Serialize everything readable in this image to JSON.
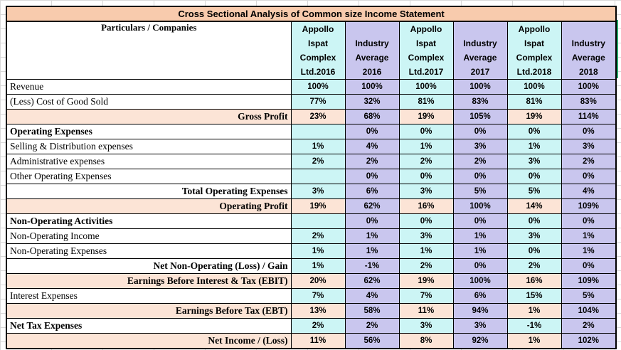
{
  "title": "Cross Sectional Analysis of Common size Income Statement",
  "header": {
    "particulars": "Particulars / Companies",
    "columns": [
      [
        "Appollo",
        "Ispat",
        "Complex",
        "Ltd.2016"
      ],
      [
        "Industry",
        "Average",
        "2016"
      ],
      [
        "Appollo",
        "Ispat",
        "Complex",
        "Ltd.2017"
      ],
      [
        "Industry",
        "Average",
        "2017"
      ],
      [
        "Appollo",
        "Ispat",
        "Complex",
        "Ltd.2018"
      ],
      [
        "Industry",
        "Average",
        "2018"
      ]
    ]
  },
  "rows": [
    {
      "label": "Revenue",
      "style": "plain",
      "values": [
        "100%",
        "100%",
        "100%",
        "100%",
        "100%",
        "100%"
      ]
    },
    {
      "label": "(Less) Cost of Good Sold",
      "style": "plain",
      "values": [
        "77%",
        "32%",
        "81%",
        "83%",
        "81%",
        "83%"
      ]
    },
    {
      "label": "Gross Profit",
      "style": "total",
      "values": [
        "23%",
        "68%",
        "19%",
        "105%",
        "19%",
        "114%"
      ]
    },
    {
      "label": "Operating Expenses",
      "style": "section",
      "values": [
        "",
        "0%",
        "0%",
        "0%",
        "0%",
        "0%"
      ]
    },
    {
      "label": "Selling & Distribution expenses",
      "style": "plain",
      "values": [
        "1%",
        "4%",
        "1%",
        "3%",
        "1%",
        "3%"
      ]
    },
    {
      "label": "Administrative expenses",
      "style": "plain",
      "values": [
        "2%",
        "2%",
        "2%",
        "2%",
        "3%",
        "2%"
      ]
    },
    {
      "label": "Other Operating Expenses",
      "style": "plain",
      "values": [
        "",
        "0%",
        "0%",
        "0%",
        "0%",
        "0%"
      ]
    },
    {
      "label": "Total Operating Expenses",
      "style": "subtotal",
      "values": [
        "3%",
        "6%",
        "3%",
        "5%",
        "5%",
        "4%"
      ]
    },
    {
      "label": "Operating Profit",
      "style": "total",
      "values": [
        "19%",
        "62%",
        "16%",
        "100%",
        "14%",
        "109%"
      ]
    },
    {
      "label": "Non-Operating Activities",
      "style": "section",
      "values": [
        "",
        "0%",
        "0%",
        "0%",
        "0%",
        "0%"
      ]
    },
    {
      "label": "Non-Operating Income",
      "style": "plain",
      "values": [
        "2%",
        "1%",
        "3%",
        "1%",
        "3%",
        "1%"
      ]
    },
    {
      "label": "Non-Operating Expenses",
      "style": "plain",
      "values": [
        "1%",
        "1%",
        "1%",
        "1%",
        "0%",
        "1%"
      ]
    },
    {
      "label": "Net Non-Operating (Loss) / Gain",
      "style": "subtotal",
      "values": [
        "1%",
        "-1%",
        "2%",
        "0%",
        "2%",
        "0%"
      ]
    },
    {
      "label": "Earnings Before Interest & Tax (EBIT)",
      "style": "total",
      "values": [
        "20%",
        "62%",
        "19%",
        "100%",
        "16%",
        "109%"
      ]
    },
    {
      "label": "Interest Expenses",
      "style": "plain",
      "values": [
        "7%",
        "4%",
        "7%",
        "6%",
        "15%",
        "5%"
      ]
    },
    {
      "label": "Earnings Before Tax (EBT)",
      "style": "total",
      "values": [
        "13%",
        "58%",
        "11%",
        "94%",
        "1%",
        "104%"
      ]
    },
    {
      "label": "Net Tax Expenses",
      "style": "section",
      "values": [
        "2%",
        "2%",
        "3%",
        "3%",
        "-1%",
        "2%"
      ]
    },
    {
      "label": "Net Income / (Loss)",
      "style": "total",
      "values": [
        "11%",
        "56%",
        "8%",
        "92%",
        "1%",
        "102%"
      ]
    }
  ]
}
